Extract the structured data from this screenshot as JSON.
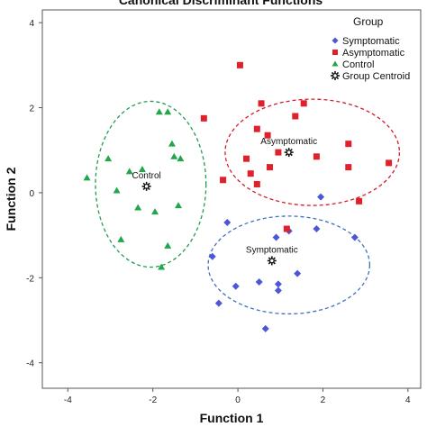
{
  "chart_data": {
    "type": "scatter",
    "title": "Canonical Discriminant Functions",
    "xlabel": "Function 1",
    "ylabel": "Function 2",
    "xlim": [
      -4.6,
      4.3
    ],
    "ylim": [
      -4.6,
      4.3
    ],
    "xticks": [
      "-4",
      "-2",
      "0",
      "2",
      "4"
    ],
    "yticks": [
      "4",
      "2",
      "0",
      "-2",
      "-4"
    ],
    "grid": false,
    "legend": {
      "title": "Group",
      "position": "top-right",
      "entries": [
        {
          "label": "Symptomatic",
          "color": "#4b57d6",
          "marker": "diamond"
        },
        {
          "label": "Asymptomatic",
          "color": "#e0202a",
          "marker": "square"
        },
        {
          "label": "Control",
          "color": "#22a64a",
          "marker": "triangle"
        },
        {
          "label": "Group Centroid",
          "color": "#111111",
          "marker": "star"
        }
      ]
    },
    "series": [
      {
        "name": "Symptomatic",
        "color": "#4b57d6",
        "marker": "diamond",
        "points": [
          [
            -0.6,
            -1.5
          ],
          [
            -0.25,
            -0.7
          ],
          [
            -0.45,
            -2.6
          ],
          [
            -0.05,
            -2.2
          ],
          [
            0.5,
            -2.1
          ],
          [
            0.95,
            -2.15
          ],
          [
            0.95,
            -2.3
          ],
          [
            0.9,
            -1.05
          ],
          [
            1.2,
            -0.9
          ],
          [
            1.85,
            -0.85
          ],
          [
            1.95,
            -0.1
          ],
          [
            1.4,
            -1.9
          ],
          [
            0.65,
            -3.2
          ],
          [
            2.75,
            -1.05
          ]
        ]
      },
      {
        "name": "Asymptomatic",
        "color": "#e0202a",
        "marker": "square",
        "points": [
          [
            -0.8,
            1.75
          ],
          [
            0.05,
            3.0
          ],
          [
            0.55,
            2.1
          ],
          [
            0.45,
            1.5
          ],
          [
            0.7,
            1.35
          ],
          [
            1.35,
            1.8
          ],
          [
            1.55,
            2.1
          ],
          [
            0.95,
            0.95
          ],
          [
            0.2,
            0.8
          ],
          [
            0.3,
            0.45
          ],
          [
            0.45,
            0.2
          ],
          [
            0.75,
            0.6
          ],
          [
            1.15,
            -0.85
          ],
          [
            1.85,
            0.85
          ],
          [
            2.6,
            1.15
          ],
          [
            2.6,
            0.6
          ],
          [
            2.85,
            -0.2
          ],
          [
            3.55,
            0.7
          ],
          [
            -0.35,
            0.3
          ]
        ]
      },
      {
        "name": "Control",
        "color": "#22a64a",
        "marker": "triangle",
        "points": [
          [
            -3.55,
            0.35
          ],
          [
            -3.05,
            0.8
          ],
          [
            -2.85,
            0.05
          ],
          [
            -2.75,
            -1.1
          ],
          [
            -2.55,
            0.5
          ],
          [
            -2.35,
            -0.35
          ],
          [
            -2.25,
            0.55
          ],
          [
            -1.95,
            -0.45
          ],
          [
            -1.85,
            1.9
          ],
          [
            -1.65,
            1.9
          ],
          [
            -1.55,
            1.15
          ],
          [
            -1.5,
            0.85
          ],
          [
            -1.35,
            0.8
          ],
          [
            -1.4,
            -0.3
          ],
          [
            -1.65,
            -1.25
          ],
          [
            -1.8,
            -1.75
          ]
        ]
      }
    ],
    "centroids": [
      {
        "label": "Control",
        "x": -2.15,
        "y": 0.15
      },
      {
        "label": "Asymptomatic",
        "x": 1.2,
        "y": 0.95
      },
      {
        "label": "Symptomatic",
        "x": 0.8,
        "y": -1.6
      }
    ],
    "ellipses": [
      {
        "group": "Control",
        "cx": -2.05,
        "cy": 0.2,
        "rx": 1.3,
        "ry": 1.95,
        "color": "#1f9e52"
      },
      {
        "group": "Asymptomatic",
        "cx": 1.75,
        "cy": 0.95,
        "rx": 2.05,
        "ry": 1.25,
        "color": "#d01f2a"
      },
      {
        "group": "Symptomatic",
        "cx": 1.2,
        "cy": -1.7,
        "rx": 1.9,
        "ry": 1.15,
        "color": "#3f6fc2"
      }
    ]
  }
}
